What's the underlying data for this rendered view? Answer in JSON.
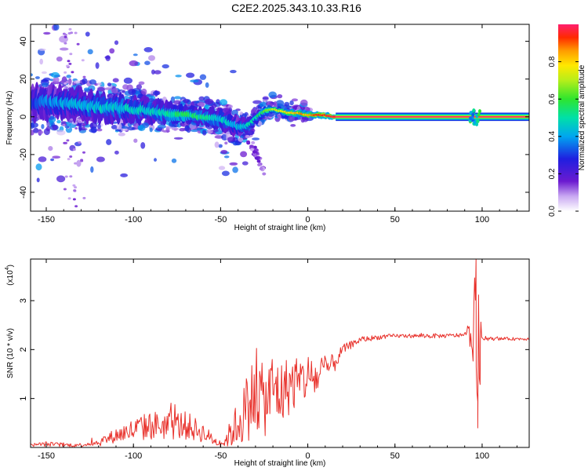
{
  "title": "C2E2.2025.343.10.33.R16",
  "chart_data": [
    {
      "type": "heatmap",
      "name": "spectrogram",
      "xlabel": "Height of straight line (km)",
      "ylabel": "Frequency (Hz)",
      "xlim": [
        -159,
        127
      ],
      "ylim": [
        -50,
        49
      ],
      "xticks": [
        -150,
        -100,
        -50,
        0,
        50,
        100
      ],
      "yticks": [
        -40,
        -20,
        0,
        20,
        40
      ],
      "colorbar": {
        "label": "Normalized spectral amplitude",
        "range": [
          0.0,
          1.0
        ],
        "ticks": [
          "0.0",
          "0.2",
          "0.4",
          "0.6",
          "0.8"
        ],
        "tick_values": [
          0.0,
          0.2,
          0.4,
          0.6,
          0.8
        ]
      },
      "ridge": {
        "x": [
          -159,
          -150,
          -140,
          -130,
          -120,
          -110,
          -100,
          -90,
          -80,
          -70,
          -60,
          -50,
          -45,
          -40,
          -35,
          -30,
          -25,
          -20,
          -15,
          -10,
          -5,
          0,
          5,
          10,
          15,
          20,
          40,
          60,
          80,
          94,
          96,
          98,
          100,
          120,
          127
        ],
        "y": [
          7,
          8,
          7,
          6,
          5,
          5,
          4,
          3,
          2,
          1,
          0,
          -1,
          -3,
          -5,
          -5,
          -1,
          3,
          4,
          3,
          2,
          2,
          1,
          1,
          1,
          0,
          0,
          0,
          0,
          0,
          0,
          2,
          -2,
          0,
          0,
          0
        ],
        "amplitude": [
          0.3,
          0.35,
          0.4,
          0.4,
          0.45,
          0.45,
          0.45,
          0.45,
          0.5,
          0.55,
          0.5,
          0.45,
          0.45,
          0.4,
          0.45,
          0.5,
          0.6,
          0.7,
          0.75,
          0.8,
          0.85,
          0.85,
          0.9,
          0.95,
          1.0,
          1.0,
          1.0,
          1.0,
          1.0,
          0.7,
          0.6,
          0.7,
          1.0,
          1.0,
          1.0
        ],
        "spread_hz": [
          10,
          10,
          9,
          9,
          8,
          8,
          7,
          7,
          6,
          5,
          5,
          6,
          6,
          6,
          4,
          3,
          3,
          2,
          2,
          2,
          2,
          2,
          2,
          2,
          1.5,
          1.5,
          1.5,
          1.5,
          1.5,
          4,
          4,
          4,
          1.5,
          1.5,
          1.5
        ]
      }
    },
    {
      "type": "line",
      "name": "snr",
      "xlabel": "Height of straight line (km)",
      "ylabel": "SNR (10 * v/v)",
      "scale_label": "(x10",
      "scale_exp": "4",
      "xlim": [
        -159,
        127
      ],
      "ylim": [
        0,
        3.85
      ],
      "xticks": [
        -150,
        -100,
        -50,
        0,
        50,
        100
      ],
      "yticks": [
        1,
        2,
        3
      ],
      "color": "#e8302a",
      "x": [
        -159,
        -150,
        -140,
        -130,
        -125,
        -120,
        -110,
        -100,
        -90,
        -80,
        -70,
        -60,
        -52,
        -48,
        -40,
        -35,
        -32,
        -28,
        -25,
        -20,
        -15,
        -10,
        -5,
        0,
        5,
        10,
        15,
        20,
        25,
        30,
        40,
        50,
        60,
        70,
        80,
        90,
        94,
        96,
        98,
        100,
        110,
        120,
        127
      ],
      "y": [
        0.05,
        0.07,
        0.05,
        0.05,
        0.08,
        0.1,
        0.25,
        0.35,
        0.45,
        0.45,
        0.45,
        0.3,
        0.1,
        0.1,
        0.5,
        0.8,
        1.0,
        1.1,
        0.9,
        1.2,
        1.1,
        1.3,
        1.3,
        1.45,
        1.4,
        1.6,
        1.7,
        2.0,
        2.1,
        2.2,
        2.25,
        2.28,
        2.28,
        2.28,
        2.28,
        2.3,
        2.3,
        2.5,
        1.6,
        2.22,
        2.22,
        2.22,
        2.22
      ],
      "spread": [
        0.03,
        0.05,
        0.04,
        0.04,
        0.05,
        0.08,
        0.15,
        0.25,
        0.3,
        0.3,
        0.3,
        0.2,
        0.08,
        0.1,
        0.5,
        0.7,
        0.8,
        0.8,
        0.7,
        0.8,
        0.7,
        0.6,
        0.5,
        0.5,
        0.4,
        0.3,
        0.2,
        0.1,
        0.08,
        0.06,
        0.05,
        0.04,
        0.04,
        0.05,
        0.04,
        0.05,
        0.3,
        1.2,
        1.6,
        0.04,
        0.03,
        0.03,
        0.03
      ]
    }
  ]
}
